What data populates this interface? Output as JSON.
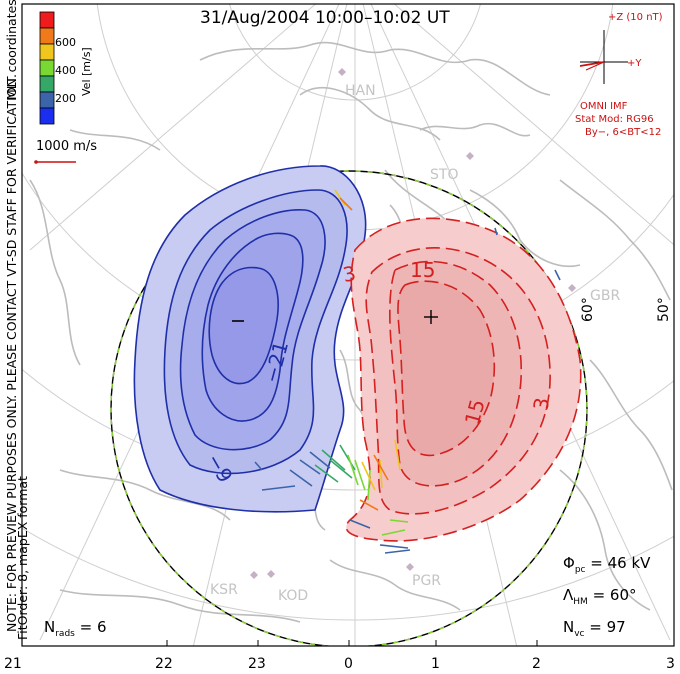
{
  "title": "31/Aug/2004 10:00–10:02 UT",
  "colorbar": {
    "label": "Vel [m/s]",
    "ticks": [
      "600",
      "400",
      "200"
    ],
    "colors": [
      "#ee1c1c",
      "#f07a1a",
      "#f0c61e",
      "#7ad832",
      "#35a868",
      "#3c64a8",
      "#1a2ef0"
    ]
  },
  "coords_label": "MLT coordinates",
  "vector_scale": "1000 m/s",
  "disclaimer": "NOTE: FOR PREVIEW PURPOSES ONLY. PLEASE CONTACT VT-SD STAFF FOR VERIFICATION.",
  "fit_order": "FitOrder: 8, mapEX format",
  "imf": {
    "z_label": "+Z (10 nT)",
    "y_label": "+Y",
    "source": "OMNI IMF",
    "model": "Stat Mod: RG96",
    "condition": "By−, 6<BT<12"
  },
  "stations": [
    "HAN",
    "STO",
    "GBR",
    "KSR",
    "KOD",
    "PGR"
  ],
  "latitude_labels": [
    "60°",
    "50°"
  ],
  "contour_labels": [
    "−9",
    "−21",
    "3",
    "15",
    "15",
    "3"
  ],
  "extrema": {
    "min_marker": "−",
    "max_marker": "+"
  },
  "stats": {
    "phi_pc_symbol": "Φ",
    "phi_pc_sub": "pc",
    "phi_pc_value": "= 46 kV",
    "lambda_hm_symbol": "Λ",
    "lambda_hm_sub": "HM",
    "lambda_hm_value": "= 60°",
    "n_vc_symbol": "N",
    "n_vc_sub": "vc",
    "n_vc_value": "= 97",
    "n_rads_symbol": "N",
    "n_rads_sub": "rads",
    "n_rads_value": "= 6"
  },
  "mlt_axis": [
    "21",
    "22",
    "23",
    "0",
    "1",
    "2",
    "3"
  ],
  "colors": {
    "negative_fill": "#c8cbf2",
    "negative_line": "#1f2fa8",
    "positive_fill": "#f6cccc",
    "positive_line": "#d42020",
    "land": "#bcbcbc"
  }
}
